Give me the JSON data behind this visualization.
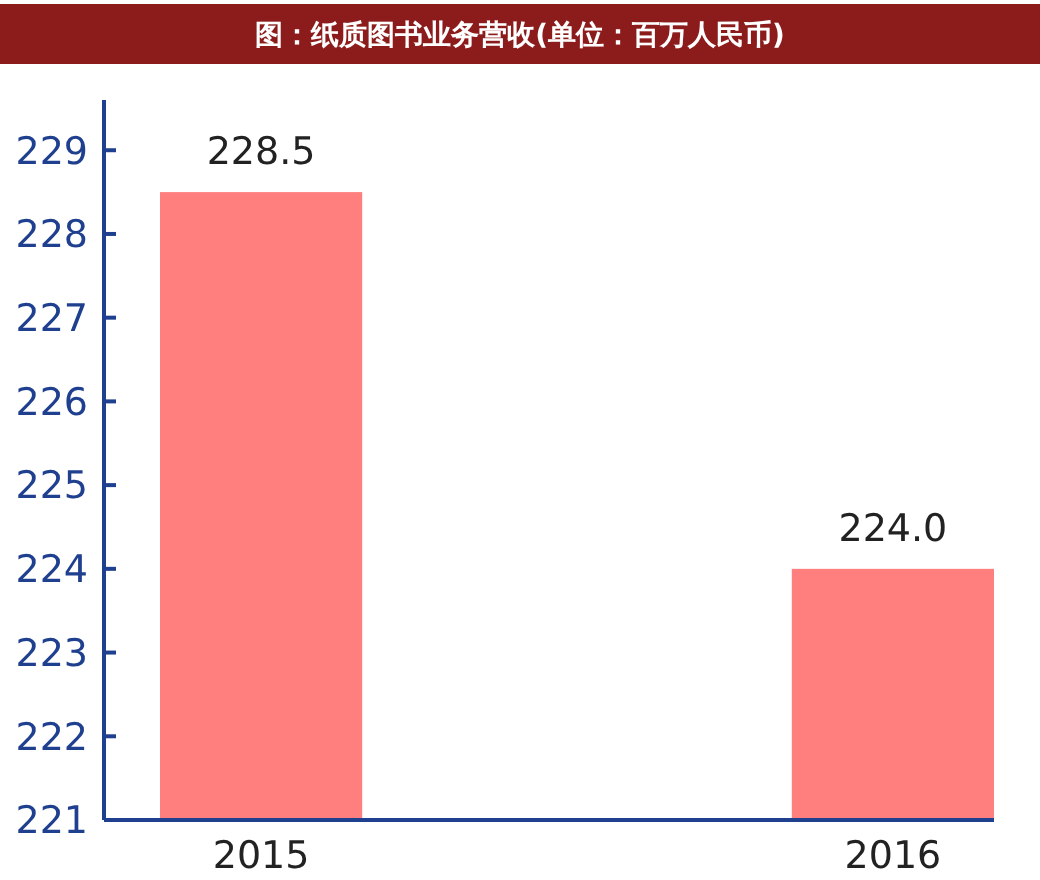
{
  "chart_data": {
    "type": "bar",
    "title": "图：纸质图书业务营收(单位：百万人民币)",
    "categories": [
      "2015",
      "2016"
    ],
    "values": [
      228.5,
      224.0
    ],
    "value_labels": [
      "228.5",
      "224.0"
    ],
    "color": "#ff7f7f",
    "ylim": [
      221,
      229.6
    ],
    "yticks": [
      221,
      222,
      223,
      224,
      225,
      226,
      227,
      228,
      229
    ],
    "grid": false
  }
}
